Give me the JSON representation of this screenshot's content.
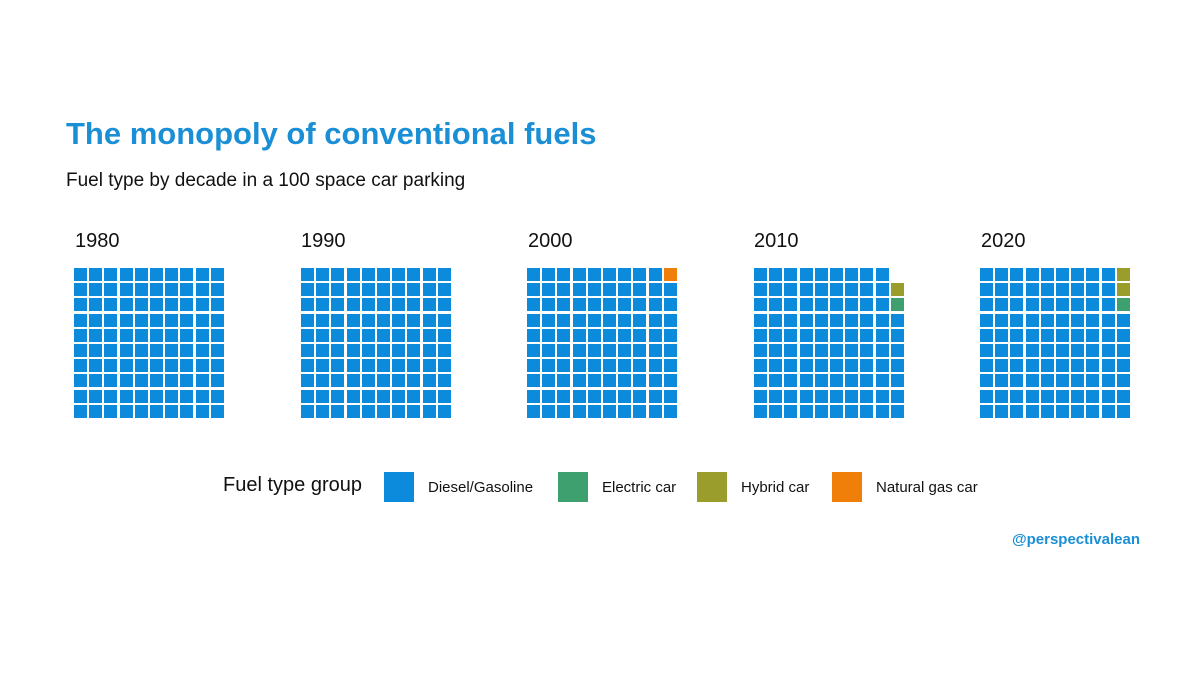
{
  "chart_data": {
    "type": "waffle",
    "title": "The monopoly of conventional fuels",
    "subtitle": "Fuel type by decade in a 100 space car parking",
    "grid": {
      "rows": 10,
      "cols": 10
    },
    "fill_order": "column-major from bottom-left, top row of last column filled last",
    "legend_title": "Fuel type group",
    "legend_placement": "bottom",
    "categories": [
      {
        "key": "diesel",
        "label": "Diesel/Gasoline",
        "color": "#0c8bdc"
      },
      {
        "key": "electric",
        "label": "Electric car",
        "color": "#3fa06f"
      },
      {
        "key": "hybrid",
        "label": "Hybrid car",
        "color": "#9a9c2b"
      },
      {
        "key": "natural_gas",
        "label": "Natural gas car",
        "color": "#f07f0a"
      }
    ],
    "panels": [
      {
        "label": "1980",
        "counts": {
          "diesel": 100,
          "electric": 0,
          "hybrid": 0,
          "natural_gas": 0
        }
      },
      {
        "label": "1990",
        "counts": {
          "diesel": 100,
          "electric": 0,
          "hybrid": 0,
          "natural_gas": 0
        }
      },
      {
        "label": "2000",
        "counts": {
          "diesel": 99,
          "electric": 0,
          "hybrid": 0,
          "natural_gas": 1
        }
      },
      {
        "label": "2010",
        "counts": {
          "diesel": 97,
          "electric": 1,
          "hybrid": 1,
          "natural_gas": 0
        },
        "empty": 1
      },
      {
        "label": "2020",
        "counts": {
          "diesel": 97,
          "electric": 1,
          "hybrid": 2,
          "natural_gas": 0
        }
      }
    ]
  },
  "credit": "@perspectivalean"
}
